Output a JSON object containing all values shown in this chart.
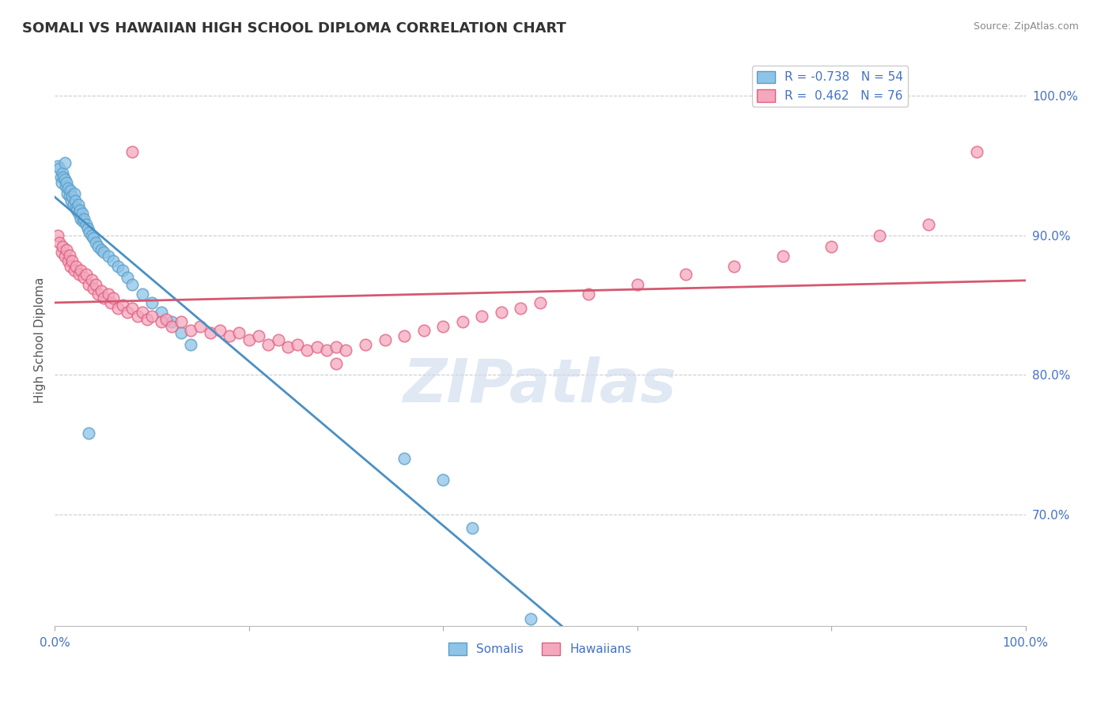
{
  "title": "SOMALI VS HAWAIIAN HIGH SCHOOL DIPLOMA CORRELATION CHART",
  "source_text": "Source: ZipAtlas.com",
  "ylabel": "High School Diploma",
  "watermark": "ZIPatlas",
  "xlim": [
    0.0,
    1.0
  ],
  "ylim": [
    0.62,
    1.03
  ],
  "y_ticks": [
    0.7,
    0.8,
    0.9,
    1.0
  ],
  "y_tick_labels": [
    "70.0%",
    "80.0%",
    "90.0%",
    "100.0%"
  ],
  "x_tick_labels_left": "0.0%",
  "x_tick_labels_right": "100.0%",
  "somali_R": -0.738,
  "somali_N": 54,
  "hawaiian_R": 0.462,
  "hawaiian_N": 76,
  "somali_color": "#8ec4e8",
  "somali_edge": "#5a9ec8",
  "hawaiian_color": "#f4a8be",
  "hawaiian_edge": "#e06080",
  "trend_somali": "#4a90c4",
  "trend_hawaiian": "#d45870",
  "bg": "#ffffff",
  "grid_color": "#cccccc",
  "title_color": "#333333",
  "blue_label": "#4472c4",
  "somali_points": [
    [
      0.003,
      0.95
    ],
    [
      0.005,
      0.948
    ],
    [
      0.006,
      0.942
    ],
    [
      0.007,
      0.938
    ],
    [
      0.008,
      0.945
    ],
    [
      0.009,
      0.942
    ],
    [
      0.01,
      0.952
    ],
    [
      0.01,
      0.94
    ],
    [
      0.011,
      0.935
    ],
    [
      0.012,
      0.938
    ],
    [
      0.013,
      0.93
    ],
    [
      0.014,
      0.934
    ],
    [
      0.015,
      0.928
    ],
    [
      0.016,
      0.932
    ],
    [
      0.017,
      0.925
    ],
    [
      0.018,
      0.928
    ],
    [
      0.019,
      0.922
    ],
    [
      0.02,
      0.93
    ],
    [
      0.021,
      0.925
    ],
    [
      0.022,
      0.92
    ],
    [
      0.023,
      0.918
    ],
    [
      0.024,
      0.922
    ],
    [
      0.025,
      0.915
    ],
    [
      0.026,
      0.918
    ],
    [
      0.027,
      0.912
    ],
    [
      0.028,
      0.916
    ],
    [
      0.029,
      0.91
    ],
    [
      0.03,
      0.912
    ],
    [
      0.032,
      0.908
    ],
    [
      0.034,
      0.905
    ],
    [
      0.036,
      0.902
    ],
    [
      0.038,
      0.9
    ],
    [
      0.04,
      0.898
    ],
    [
      0.042,
      0.895
    ],
    [
      0.045,
      0.892
    ],
    [
      0.048,
      0.89
    ],
    [
      0.05,
      0.888
    ],
    [
      0.055,
      0.885
    ],
    [
      0.06,
      0.882
    ],
    [
      0.065,
      0.878
    ],
    [
      0.07,
      0.875
    ],
    [
      0.075,
      0.87
    ],
    [
      0.08,
      0.865
    ],
    [
      0.09,
      0.858
    ],
    [
      0.1,
      0.852
    ],
    [
      0.11,
      0.845
    ],
    [
      0.12,
      0.838
    ],
    [
      0.13,
      0.83
    ],
    [
      0.14,
      0.822
    ],
    [
      0.035,
      0.758
    ],
    [
      0.36,
      0.74
    ],
    [
      0.4,
      0.725
    ],
    [
      0.43,
      0.69
    ],
    [
      0.49,
      0.625
    ]
  ],
  "hawaiian_points": [
    [
      0.003,
      0.9
    ],
    [
      0.005,
      0.895
    ],
    [
      0.007,
      0.888
    ],
    [
      0.008,
      0.892
    ],
    [
      0.01,
      0.885
    ],
    [
      0.012,
      0.89
    ],
    [
      0.014,
      0.882
    ],
    [
      0.015,
      0.886
    ],
    [
      0.016,
      0.878
    ],
    [
      0.018,
      0.882
    ],
    [
      0.02,
      0.875
    ],
    [
      0.022,
      0.878
    ],
    [
      0.025,
      0.872
    ],
    [
      0.027,
      0.875
    ],
    [
      0.03,
      0.87
    ],
    [
      0.032,
      0.872
    ],
    [
      0.035,
      0.865
    ],
    [
      0.038,
      0.868
    ],
    [
      0.04,
      0.862
    ],
    [
      0.042,
      0.865
    ],
    [
      0.045,
      0.858
    ],
    [
      0.048,
      0.86
    ],
    [
      0.05,
      0.855
    ],
    [
      0.055,
      0.858
    ],
    [
      0.058,
      0.852
    ],
    [
      0.06,
      0.855
    ],
    [
      0.065,
      0.848
    ],
    [
      0.07,
      0.85
    ],
    [
      0.075,
      0.845
    ],
    [
      0.08,
      0.848
    ],
    [
      0.085,
      0.842
    ],
    [
      0.09,
      0.845
    ],
    [
      0.095,
      0.84
    ],
    [
      0.1,
      0.842
    ],
    [
      0.11,
      0.838
    ],
    [
      0.115,
      0.84
    ],
    [
      0.12,
      0.835
    ],
    [
      0.13,
      0.838
    ],
    [
      0.14,
      0.832
    ],
    [
      0.15,
      0.835
    ],
    [
      0.16,
      0.83
    ],
    [
      0.17,
      0.832
    ],
    [
      0.18,
      0.828
    ],
    [
      0.19,
      0.83
    ],
    [
      0.2,
      0.825
    ],
    [
      0.21,
      0.828
    ],
    [
      0.22,
      0.822
    ],
    [
      0.23,
      0.825
    ],
    [
      0.24,
      0.82
    ],
    [
      0.25,
      0.822
    ],
    [
      0.26,
      0.818
    ],
    [
      0.27,
      0.82
    ],
    [
      0.28,
      0.818
    ],
    [
      0.29,
      0.82
    ],
    [
      0.3,
      0.818
    ],
    [
      0.32,
      0.822
    ],
    [
      0.34,
      0.825
    ],
    [
      0.36,
      0.828
    ],
    [
      0.38,
      0.832
    ],
    [
      0.4,
      0.835
    ],
    [
      0.42,
      0.838
    ],
    [
      0.44,
      0.842
    ],
    [
      0.46,
      0.845
    ],
    [
      0.48,
      0.848
    ],
    [
      0.5,
      0.852
    ],
    [
      0.55,
      0.858
    ],
    [
      0.6,
      0.865
    ],
    [
      0.65,
      0.872
    ],
    [
      0.7,
      0.878
    ],
    [
      0.75,
      0.885
    ],
    [
      0.8,
      0.892
    ],
    [
      0.85,
      0.9
    ],
    [
      0.9,
      0.908
    ],
    [
      0.95,
      0.96
    ],
    [
      0.08,
      0.96
    ],
    [
      0.29,
      0.808
    ]
  ]
}
